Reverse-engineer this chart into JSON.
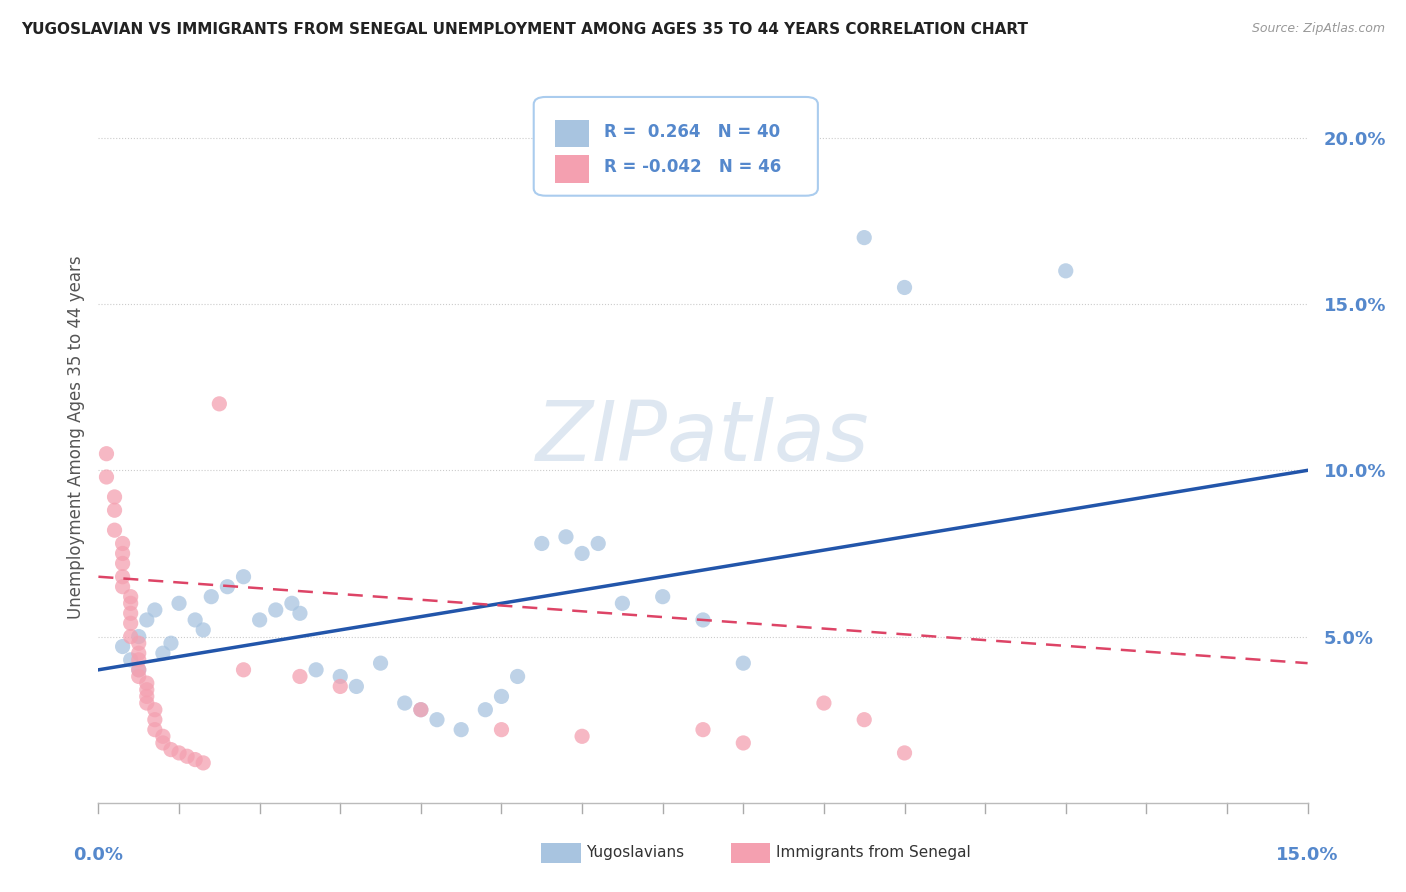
{
  "title": "YUGOSLAVIAN VS IMMIGRANTS FROM SENEGAL UNEMPLOYMENT AMONG AGES 35 TO 44 YEARS CORRELATION CHART",
  "source": "Source: ZipAtlas.com",
  "ylabel": "Unemployment Among Ages 35 to 44 years",
  "xlim": [
    0.0,
    0.15
  ],
  "ylim": [
    0.0,
    0.22
  ],
  "yticks": [
    0.05,
    0.1,
    0.15,
    0.2
  ],
  "ytick_labels": [
    "5.0%",
    "10.0%",
    "15.0%",
    "20.0%"
  ],
  "watermark": "ZIPatlas",
  "legend_blue_R": " 0.264",
  "legend_blue_N": "40",
  "legend_pink_R": "-0.042",
  "legend_pink_N": "46",
  "blue_color": "#A8C4E0",
  "pink_color": "#F4A0B0",
  "line_blue": "#2255AA",
  "line_pink": "#DD4466",
  "blue_scatter": [
    [
      0.003,
      0.047
    ],
    [
      0.004,
      0.043
    ],
    [
      0.005,
      0.05
    ],
    [
      0.005,
      0.04
    ],
    [
      0.006,
      0.055
    ],
    [
      0.007,
      0.058
    ],
    [
      0.008,
      0.045
    ],
    [
      0.009,
      0.048
    ],
    [
      0.01,
      0.06
    ],
    [
      0.012,
      0.055
    ],
    [
      0.013,
      0.052
    ],
    [
      0.014,
      0.062
    ],
    [
      0.016,
      0.065
    ],
    [
      0.018,
      0.068
    ],
    [
      0.02,
      0.055
    ],
    [
      0.022,
      0.058
    ],
    [
      0.024,
      0.06
    ],
    [
      0.025,
      0.057
    ],
    [
      0.027,
      0.04
    ],
    [
      0.03,
      0.038
    ],
    [
      0.032,
      0.035
    ],
    [
      0.035,
      0.042
    ],
    [
      0.038,
      0.03
    ],
    [
      0.04,
      0.028
    ],
    [
      0.042,
      0.025
    ],
    [
      0.045,
      0.022
    ],
    [
      0.048,
      0.028
    ],
    [
      0.05,
      0.032
    ],
    [
      0.052,
      0.038
    ],
    [
      0.055,
      0.078
    ],
    [
      0.058,
      0.08
    ],
    [
      0.06,
      0.075
    ],
    [
      0.062,
      0.078
    ],
    [
      0.065,
      0.06
    ],
    [
      0.07,
      0.062
    ],
    [
      0.075,
      0.055
    ],
    [
      0.08,
      0.042
    ],
    [
      0.095,
      0.17
    ],
    [
      0.1,
      0.155
    ],
    [
      0.12,
      0.16
    ]
  ],
  "pink_scatter": [
    [
      0.001,
      0.105
    ],
    [
      0.001,
      0.098
    ],
    [
      0.002,
      0.092
    ],
    [
      0.002,
      0.088
    ],
    [
      0.002,
      0.082
    ],
    [
      0.003,
      0.078
    ],
    [
      0.003,
      0.075
    ],
    [
      0.003,
      0.072
    ],
    [
      0.003,
      0.068
    ],
    [
      0.003,
      0.065
    ],
    [
      0.004,
      0.062
    ],
    [
      0.004,
      0.06
    ],
    [
      0.004,
      0.057
    ],
    [
      0.004,
      0.054
    ],
    [
      0.004,
      0.05
    ],
    [
      0.005,
      0.048
    ],
    [
      0.005,
      0.045
    ],
    [
      0.005,
      0.043
    ],
    [
      0.005,
      0.04
    ],
    [
      0.005,
      0.038
    ],
    [
      0.006,
      0.036
    ],
    [
      0.006,
      0.034
    ],
    [
      0.006,
      0.032
    ],
    [
      0.006,
      0.03
    ],
    [
      0.007,
      0.028
    ],
    [
      0.007,
      0.025
    ],
    [
      0.007,
      0.022
    ],
    [
      0.008,
      0.02
    ],
    [
      0.008,
      0.018
    ],
    [
      0.009,
      0.016
    ],
    [
      0.01,
      0.015
    ],
    [
      0.011,
      0.014
    ],
    [
      0.012,
      0.013
    ],
    [
      0.013,
      0.012
    ],
    [
      0.015,
      0.12
    ],
    [
      0.018,
      0.04
    ],
    [
      0.025,
      0.038
    ],
    [
      0.03,
      0.035
    ],
    [
      0.04,
      0.028
    ],
    [
      0.05,
      0.022
    ],
    [
      0.06,
      0.02
    ],
    [
      0.075,
      0.022
    ],
    [
      0.08,
      0.018
    ],
    [
      0.09,
      0.03
    ],
    [
      0.095,
      0.025
    ],
    [
      0.1,
      0.015
    ]
  ],
  "blue_line_x": [
    0.0,
    0.15
  ],
  "blue_line_y": [
    0.04,
    0.1
  ],
  "pink_line_x": [
    0.0,
    0.15
  ],
  "pink_line_y": [
    0.068,
    0.042
  ],
  "background_color": "#FFFFFF",
  "grid_color": "#CCCCCC",
  "title_color": "#222222",
  "axis_label_color": "#5588CC",
  "source_color": "#999999",
  "ylabel_color": "#555555"
}
